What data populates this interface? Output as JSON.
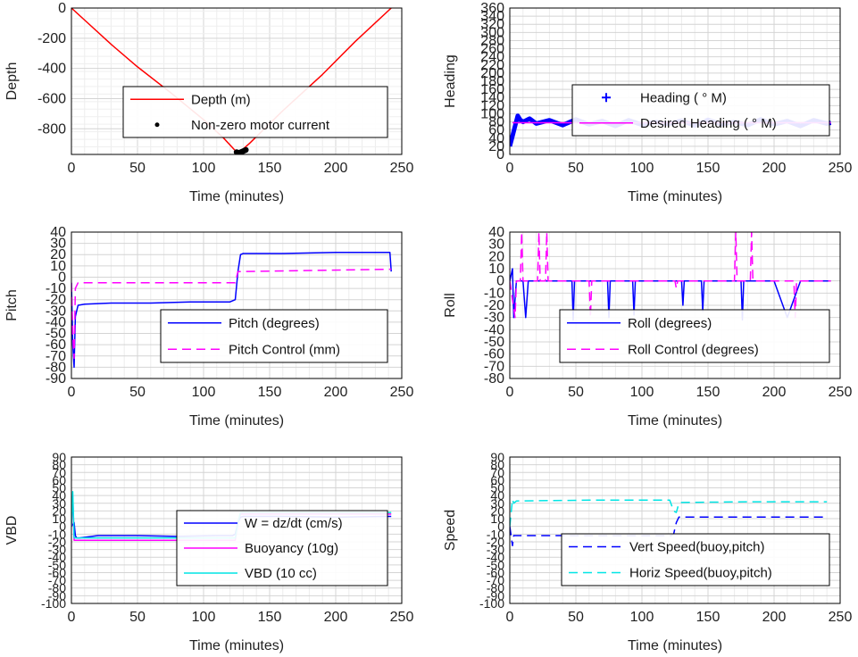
{
  "charts": [
    {
      "id": "depth",
      "type": "line",
      "xlabel": "Time (minutes)",
      "ylabel": "Depth",
      "xlim": [
        0,
        250
      ],
      "ylim": [
        -970,
        0
      ],
      "xticks": [
        "0",
        "50",
        "100",
        "150",
        "200",
        "250"
      ],
      "yticks": [
        "0",
        "-200",
        "-400",
        "-600",
        "-800"
      ],
      "legend": [
        "Depth (m)",
        "Non-zero motor current"
      ],
      "series": [
        {
          "name": "Depth (m)",
          "color": "#ff0000",
          "dash": "",
          "x": [
            0,
            10,
            30,
            50,
            75,
            100,
            115,
            124,
            126,
            128,
            135,
            160,
            190,
            215,
            242
          ],
          "y": [
            0,
            -80,
            -240,
            -390,
            -560,
            -740,
            -860,
            -945,
            -955,
            -950,
            -895,
            -680,
            -440,
            -220,
            0
          ]
        },
        {
          "name": "Non-zero motor current",
          "color": "#000000",
          "kind": "points",
          "x": [
            125,
            126,
            127,
            128,
            129,
            130,
            131,
            132
          ],
          "y": [
            -955,
            -958,
            -960,
            -956,
            -952,
            -948,
            -944,
            -940
          ]
        }
      ]
    },
    {
      "id": "heading",
      "type": "line",
      "xlabel": "Time (minutes)",
      "ylabel": "Heading",
      "xlim": [
        0,
        250
      ],
      "ylim": [
        0,
        360
      ],
      "xticks": [
        "0",
        "50",
        "100",
        "150",
        "200",
        "250"
      ],
      "yticks": [
        "0",
        "20",
        "40",
        "60",
        "80",
        "100",
        "120",
        "140",
        "160",
        "180",
        "200",
        "220",
        "240",
        "260",
        "280",
        "300",
        "320",
        "340",
        "360"
      ],
      "legend": [
        "Heading (   ° M)",
        "Desired Heading (   ° M)"
      ],
      "series": [
        {
          "name": "Heading (   ° M)",
          "color": "#0000ff",
          "dash": "",
          "x": [
            0,
            2,
            4,
            6,
            8,
            10,
            15,
            20,
            30,
            40,
            50,
            60,
            70,
            80,
            90,
            100,
            110,
            120,
            130,
            140,
            150,
            160,
            170,
            180,
            190,
            200,
            210,
            220,
            230,
            240,
            243
          ],
          "y": [
            20,
            45,
            70,
            95,
            85,
            80,
            88,
            76,
            84,
            72,
            86,
            74,
            82,
            70,
            84,
            73,
            80,
            75,
            83,
            71,
            85,
            74,
            80,
            72,
            86,
            74,
            82,
            70,
            84,
            76,
            78
          ]
        },
        {
          "name": "Desired Heading (   ° M)",
          "color": "#ff00ff",
          "dash": "",
          "x": [
            2,
            243
          ],
          "y": [
            78,
            78
          ]
        }
      ]
    },
    {
      "id": "pitch",
      "type": "line",
      "xlabel": "Time (minutes)",
      "ylabel": "Pitch",
      "xlim": [
        0,
        250
      ],
      "ylim": [
        -90,
        40
      ],
      "xticks": [
        "0",
        "50",
        "100",
        "150",
        "200",
        "250"
      ],
      "yticks": [
        "40",
        "30",
        "20",
        "10",
        "0",
        "-10",
        "-20",
        "-30",
        "-40",
        "-50",
        "-60",
        "-70",
        "-80",
        "-90"
      ],
      "legend": [
        "Pitch (degrees)",
        "Pitch Control (mm)"
      ],
      "series": [
        {
          "name": "Pitch (degrees)",
          "color": "#0000ff",
          "dash": "",
          "x": [
            0,
            1,
            2,
            3,
            5,
            10,
            30,
            60,
            90,
            120,
            124,
            126,
            128,
            130,
            160,
            200,
            241,
            242
          ],
          "y": [
            -5,
            -60,
            -80,
            -35,
            -25,
            -24,
            -23,
            -23,
            -22,
            -22,
            -20,
            5,
            20,
            21,
            21,
            22,
            22,
            5
          ]
        },
        {
          "name": "Pitch Control (mm)",
          "color": "#ff00ff",
          "dash": "10,6",
          "x": [
            0,
            1,
            2,
            3,
            5,
            124,
            126,
            128,
            242
          ],
          "y": [
            -5,
            -50,
            -72,
            -10,
            -5,
            -5,
            5,
            5,
            7
          ]
        }
      ]
    },
    {
      "id": "roll",
      "type": "line",
      "xlabel": "Time (minutes)",
      "ylabel": "Roll",
      "xlim": [
        0,
        250
      ],
      "ylim": [
        -80,
        40
      ],
      "xticks": [
        "0",
        "50",
        "100",
        "150",
        "200",
        "250"
      ],
      "yticks": [
        "40",
        "30",
        "20",
        "10",
        "0",
        "-10",
        "-20",
        "-30",
        "-40",
        "-50",
        "-60",
        "-70",
        "-80"
      ],
      "legend": [
        "Roll (degrees)",
        "Roll Control (degrees)"
      ],
      "series": [
        {
          "name": "Roll (degrees)",
          "color": "#0000ff",
          "dash": "",
          "x": [
            0,
            2,
            3,
            5,
            10,
            12,
            14,
            30,
            47,
            48,
            49,
            60,
            74,
            75,
            76,
            93,
            94,
            95,
            130,
            131,
            132,
            145,
            146,
            147,
            175,
            176,
            177,
            200,
            210,
            220,
            240,
            243
          ],
          "y": [
            0,
            10,
            -30,
            0,
            0,
            -30,
            0,
            0,
            0,
            -32,
            0,
            0,
            0,
            -30,
            0,
            0,
            -28,
            0,
            0,
            -20,
            0,
            0,
            -25,
            0,
            0,
            -32,
            0,
            0,
            -30,
            0,
            0,
            0
          ]
        },
        {
          "name": "Roll Control (degrees)",
          "color": "#ff00ff",
          "dash": "10,6",
          "x": [
            0,
            4,
            5,
            8,
            9,
            10,
            21,
            22,
            23,
            27,
            28,
            29,
            60,
            61,
            62,
            125,
            126,
            127,
            170,
            171,
            172,
            182,
            183,
            184,
            215,
            216,
            217,
            243
          ],
          "y": [
            0,
            -30,
            0,
            0,
            40,
            0,
            0,
            40,
            0,
            0,
            40,
            0,
            0,
            -30,
            0,
            0,
            -6,
            0,
            0,
            40,
            0,
            0,
            40,
            0,
            0,
            -30,
            0,
            0
          ]
        }
      ]
    },
    {
      "id": "vbd",
      "type": "line",
      "xlabel": "Time (minutes)",
      "ylabel": "VBD",
      "xlim": [
        0,
        250
      ],
      "ylim": [
        -100,
        90
      ],
      "xticks": [
        "0",
        "50",
        "100",
        "150",
        "200",
        "250"
      ],
      "yticks": [
        "90",
        "80",
        "70",
        "60",
        "50",
        "40",
        "30",
        "20",
        "10",
        "0",
        "-10",
        "-20",
        "-30",
        "-40",
        "-50",
        "-60",
        "-70",
        "-80",
        "-90",
        "-100"
      ],
      "legend": [
        "W = dz/dt (cm/s)",
        "Buoyancy (10g)",
        "VBD (10 cc)"
      ],
      "series": [
        {
          "name": "W = dz/dt (cm/s)",
          "color": "#0000ff",
          "dash": "",
          "x": [
            0,
            2,
            3,
            4,
            6,
            20,
            50,
            80,
            110,
            122,
            124,
            126,
            128,
            130,
            160,
            200,
            240,
            242
          ],
          "y": [
            0,
            5,
            -12,
            -15,
            -15,
            -12,
            -12,
            -13,
            -12,
            -12,
            -10,
            5,
            12,
            13,
            13,
            12,
            13,
            13
          ]
        },
        {
          "name": "Buoyancy (10g)",
          "color": "#ff00ff",
          "dash": "",
          "x": [
            0,
            1,
            2,
            3,
            124,
            126,
            128,
            242
          ],
          "y": [
            0,
            40,
            -18,
            -18,
            -18,
            5,
            16,
            16
          ]
        },
        {
          "name": "VBD (10 cc)",
          "color": "#00e5e5",
          "dash": "",
          "x": [
            0,
            1,
            2,
            3,
            124,
            126,
            128,
            242
          ],
          "y": [
            0,
            45,
            -15,
            -15,
            -15,
            5,
            18,
            18
          ]
        }
      ]
    },
    {
      "id": "speed",
      "type": "line",
      "xlabel": "Time (minutes)",
      "ylabel": "Speed",
      "xlim": [
        0,
        250
      ],
      "ylim": [
        -100,
        90
      ],
      "xticks": [
        "0",
        "50",
        "100",
        "150",
        "200",
        "250"
      ],
      "yticks": [
        "90",
        "80",
        "70",
        "60",
        "50",
        "40",
        "30",
        "20",
        "10",
        "0",
        "-10",
        "-20",
        "-30",
        "-40",
        "-50",
        "-60",
        "-70",
        "-80",
        "-90",
        "-100"
      ],
      "legend": [
        "Vert Speed(buoy,pitch)",
        "Horiz Speed(buoy,pitch)"
      ],
      "series": [
        {
          "name": "Vert Speed(buoy,pitch)",
          "color": "#0000ff",
          "dash": "10,6",
          "x": [
            0,
            2,
            3,
            5,
            60,
            122,
            124,
            126,
            128,
            130,
            180,
            240
          ],
          "y": [
            0,
            -25,
            -12,
            -12,
            -12,
            -12,
            -10,
            5,
            12,
            12,
            12,
            12
          ]
        },
        {
          "name": "Horiz Speed(buoy,pitch)",
          "color": "#00e5e5",
          "dash": "10,6",
          "x": [
            0,
            2,
            3,
            5,
            60,
            121,
            124,
            126,
            128,
            130,
            180,
            240
          ],
          "y": [
            0,
            35,
            30,
            33,
            34,
            34,
            20,
            18,
            30,
            31,
            32,
            32
          ]
        }
      ]
    }
  ]
}
